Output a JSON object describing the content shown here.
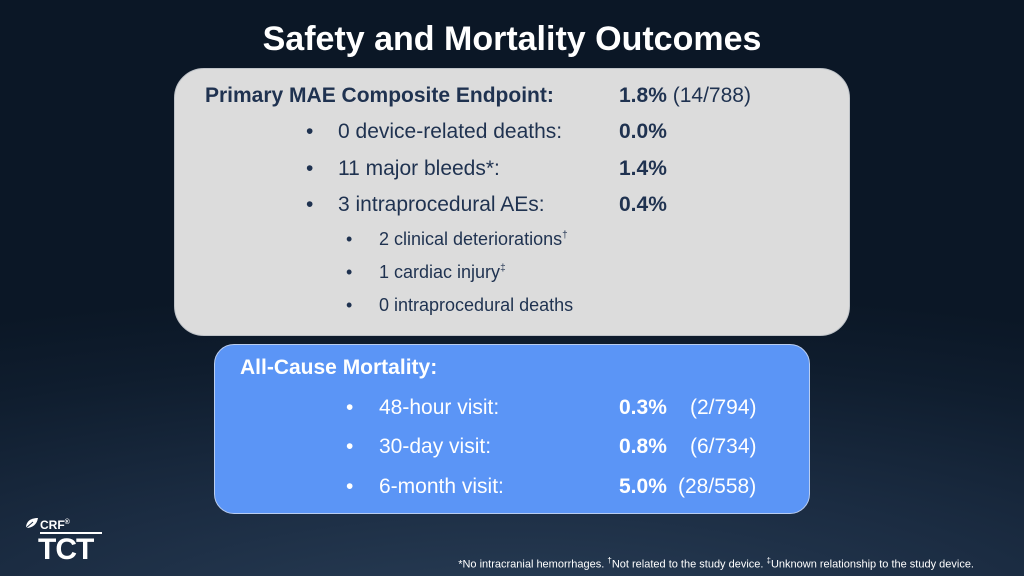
{
  "title": "Safety and Mortality Outcomes",
  "primary": {
    "label": "Primary MAE Composite Endpoint:",
    "value": "1.8%",
    "count": "(14/788)",
    "items": [
      {
        "label": "0 device-related deaths:",
        "value": "0.0%"
      },
      {
        "label": "11 major bleeds*:",
        "value": "1.4%"
      },
      {
        "label": "3 intraprocedural AEs:",
        "value": "0.4%"
      }
    ],
    "subitems": [
      {
        "label": "2 clinical deteriorations",
        "mark": "†"
      },
      {
        "label": "1 cardiac injury",
        "mark": "‡"
      },
      {
        "label": "0 intraprocedural deaths",
        "mark": ""
      }
    ]
  },
  "mortality": {
    "label": "All-Cause Mortality:",
    "items": [
      {
        "label": "48-hour visit:",
        "value": "0.3%",
        "count": "(2/794)"
      },
      {
        "label": "30-day visit:",
        "value": "0.8%",
        "count": "(6/734)"
      },
      {
        "label": "6-month visit:",
        "value": "5.0%",
        "count": "(28/558)"
      }
    ]
  },
  "bullet": "•",
  "logo": {
    "crf": "CRF",
    "crf_mark": "®",
    "tct": "TCT"
  },
  "footnote": {
    "a": "*No intracranial hemorrhages. ",
    "m1": "†",
    "b": "Not related to the study device. ",
    "m2": "‡",
    "c": "Unknown relationship to the study device."
  }
}
